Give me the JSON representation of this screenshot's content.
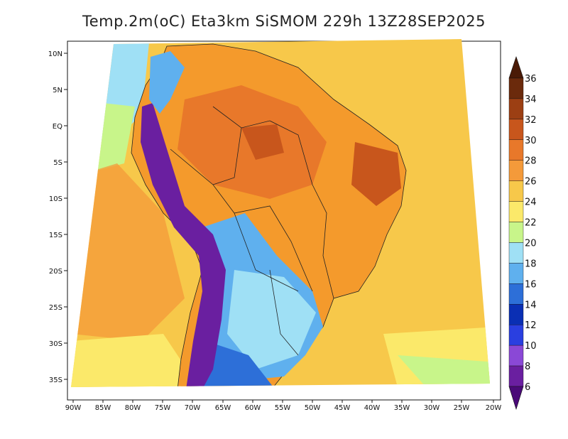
{
  "title": "Temp.2m(oC) Eta3km SiSMOM 229h 13Z28SEP2025",
  "map": {
    "lat_labels": [
      "10N",
      "5N",
      "EQ",
      "5S",
      "10S",
      "15S",
      "20S",
      "25S",
      "30S",
      "35S"
    ],
    "lon_labels": [
      "90W",
      "85W",
      "80W",
      "75W",
      "70W",
      "65W",
      "60W",
      "55W",
      "50W",
      "45W",
      "40W",
      "35W",
      "30W",
      "25W",
      "20W"
    ],
    "ocean_color": "#f7c84a",
    "land_warm_color": "#f49a2c"
  },
  "colorbar": {
    "labels": [
      "36",
      "34",
      "32",
      "30",
      "28",
      "26",
      "24",
      "22",
      "20",
      "18",
      "16",
      "14",
      "12",
      "10",
      "8",
      "6"
    ],
    "colors": [
      "#6b2a0c",
      "#9c3f13",
      "#c8561c",
      "#e8782a",
      "#f49a3a",
      "#f7c84a",
      "#fbe96a",
      "#c8f58a",
      "#9fe0f5",
      "#5fb0ee",
      "#2d6fd8",
      "#0a2fb4",
      "#2a3fe0",
      "#8a48d6",
      "#6a1fa0"
    ]
  }
}
